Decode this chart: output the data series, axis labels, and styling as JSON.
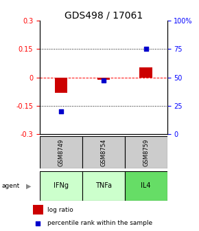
{
  "title": "GDS498 / 17061",
  "samples": [
    "GSM8749",
    "GSM8754",
    "GSM8759"
  ],
  "agents": [
    "IFNg",
    "TNFa",
    "IL4"
  ],
  "log_ratios": [
    -0.08,
    -0.012,
    0.052
  ],
  "percentile_ranks": [
    20.0,
    47.0,
    75.0
  ],
  "left_ylim": [
    -0.3,
    0.3
  ],
  "right_ylim": [
    0,
    100
  ],
  "left_yticks": [
    0.3,
    0.15,
    0,
    -0.15,
    -0.3
  ],
  "right_yticks": [
    100,
    75,
    50,
    25,
    0
  ],
  "right_yticklabels": [
    "100%",
    "75",
    "50",
    "25",
    "0"
  ],
  "hlines": [
    0.15,
    0.0,
    -0.15
  ],
  "hline_styles": [
    "dotted",
    "dashed",
    "dotted"
  ],
  "hline_colors": [
    "black",
    "red",
    "black"
  ],
  "bar_color": "#cc0000",
  "square_color": "#0000cc",
  "sample_bg_color": "#cccccc",
  "agent_colors": {
    "IFNg": "#ccffcc",
    "TNFa": "#ccffcc",
    "IL4": "#66dd66"
  },
  "bar_width": 0.3,
  "square_size": 18,
  "title_fontsize": 10,
  "tick_fontsize": 7,
  "legend_fontsize": 6.5
}
